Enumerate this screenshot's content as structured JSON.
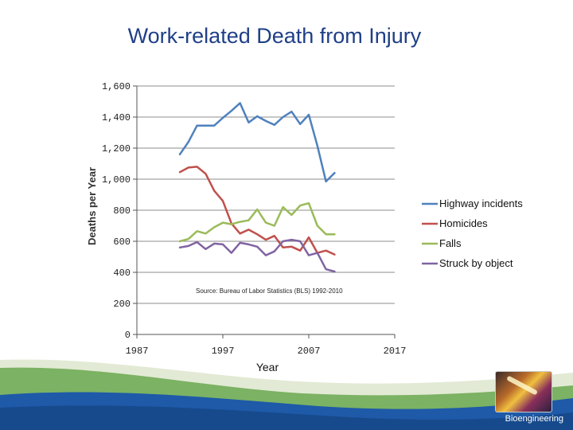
{
  "slide": {
    "title": "Work-related Death from Injury",
    "footer_label": "Bioengineering"
  },
  "colors": {
    "title": "#1f3f87",
    "footer_blue": "#1e5aa8",
    "footer_green": "#6aa84f"
  },
  "icons": {
    "logo": "bioengineering-logo-image"
  },
  "chart_data": {
    "type": "line",
    "title": "",
    "xlabel": "Year",
    "ylabel": "Deaths per Year",
    "xlim": [
      1987,
      2017
    ],
    "ylim": [
      0,
      1600
    ],
    "xticks": [
      1987,
      1997,
      2007,
      2017
    ],
    "yticks": [
      0,
      200,
      400,
      600,
      800,
      1000,
      1200,
      1400,
      1600
    ],
    "ytick_labels": [
      "0",
      "200",
      "400",
      "600",
      "800",
      "1,000",
      "1,200",
      "1,400",
      "1,600"
    ],
    "grid": "horizontal",
    "legend_position": "right",
    "annotation": "Source: Bureau of Labor Statistics (BLS) 1992-2010",
    "x": [
      1992,
      1993,
      1994,
      1995,
      1996,
      1997,
      1998,
      1999,
      2000,
      2001,
      2002,
      2003,
      2004,
      2005,
      2006,
      2007,
      2008,
      2009,
      2010
    ],
    "series": [
      {
        "name": "Highway incidents",
        "color": "#4f81bd",
        "values": [
          1160,
          1240,
          1345,
          1345,
          1345,
          1395,
          1440,
          1490,
          1365,
          1405,
          1375,
          1350,
          1400,
          1435,
          1355,
          1415,
          1215,
          985,
          1040
        ]
      },
      {
        "name": "Homicides",
        "color": "#c0504d",
        "values": [
          1045,
          1075,
          1080,
          1035,
          925,
          860,
          715,
          650,
          675,
          645,
          610,
          635,
          560,
          565,
          540,
          625,
          525,
          540,
          515
        ]
      },
      {
        "name": "Falls",
        "color": "#9bbb59",
        "values": [
          600,
          615,
          665,
          650,
          690,
          720,
          710,
          725,
          735,
          805,
          720,
          700,
          820,
          770,
          830,
          845,
          700,
          645,
          645
        ]
      },
      {
        "name": "Struck by object",
        "color": "#8064a2",
        "values": [
          560,
          570,
          595,
          550,
          585,
          580,
          525,
          590,
          580,
          565,
          510,
          535,
          600,
          610,
          600,
          510,
          525,
          420,
          405
        ]
      }
    ]
  }
}
